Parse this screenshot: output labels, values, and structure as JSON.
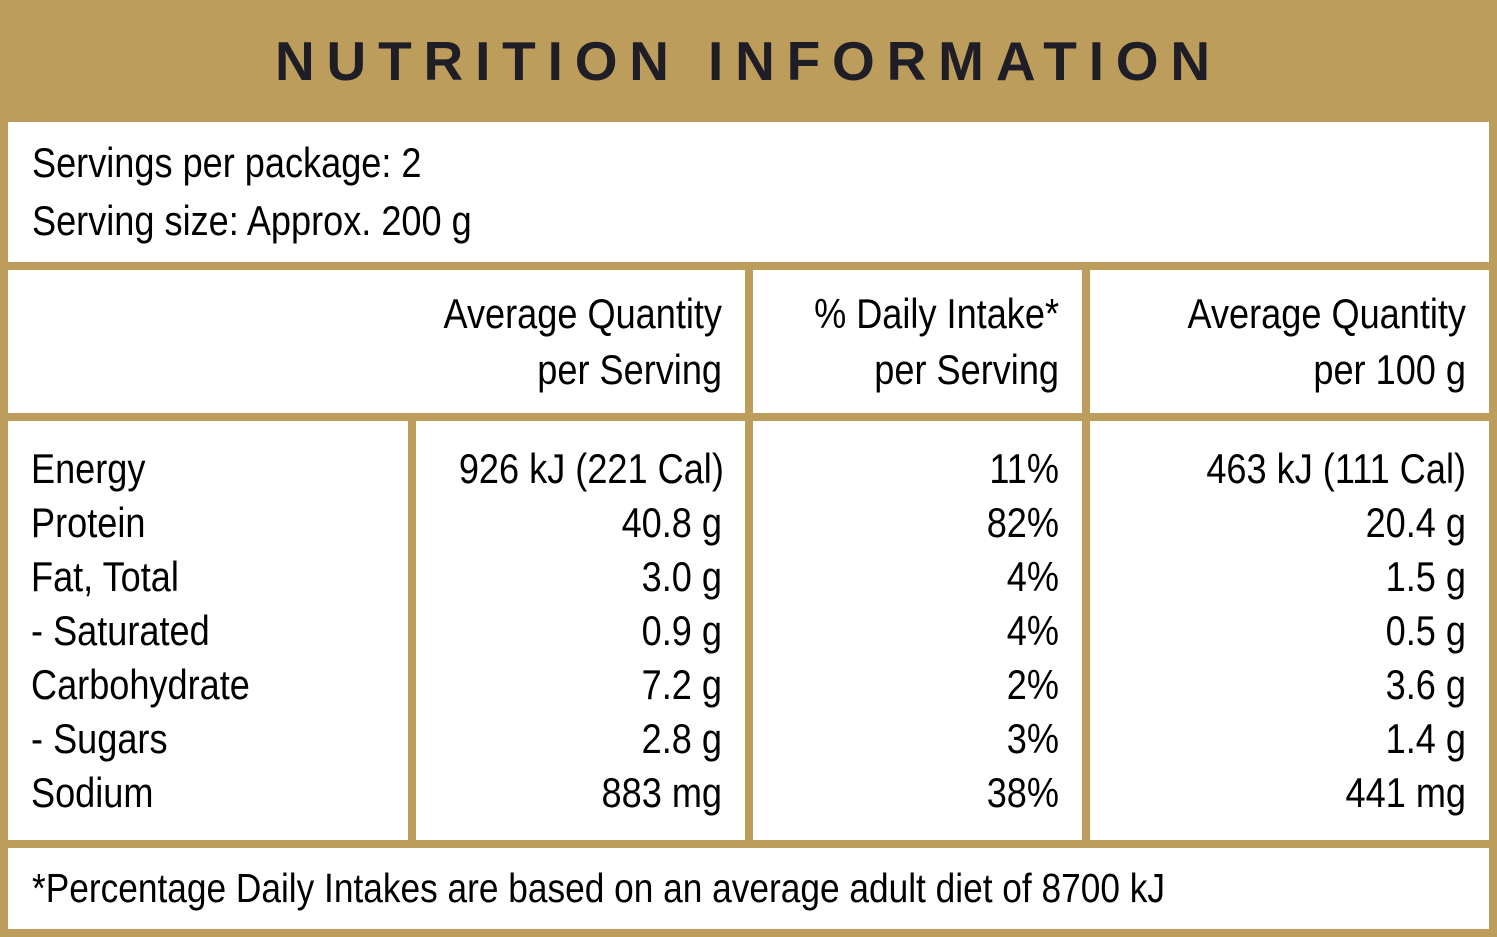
{
  "title": "NUTRITION INFORMATION",
  "colors": {
    "gold": "#BC9D5C",
    "title_text": "#1F1E26",
    "body_text": "#000000",
    "panel_background": "#FFFFFF"
  },
  "serving_info": {
    "servings_per_package": "Servings per package: 2",
    "serving_size": "Serving size: Approx. 200 g"
  },
  "table": {
    "columns": [
      {
        "line1": "Average Quantity",
        "line2": "per Serving"
      },
      {
        "line1": "% Daily Intake*",
        "line2": "per Serving"
      },
      {
        "line1": "Average Quantity",
        "line2": "per 100 g"
      }
    ],
    "rows": [
      {
        "nutrient": "Energy",
        "per_serving": "926 kJ (221 Cal)",
        "daily_intake": "11%",
        "per_100g": "463 kJ (111 Cal)"
      },
      {
        "nutrient": "Protein",
        "per_serving": "40.8 g",
        "daily_intake": "82%",
        "per_100g": "20.4 g"
      },
      {
        "nutrient": "Fat, Total",
        "per_serving": "3.0 g",
        "daily_intake": "4%",
        "per_100g": "1.5 g"
      },
      {
        "nutrient": "- Saturated",
        "per_serving": "0.9 g",
        "daily_intake": "4%",
        "per_100g": "0.5 g"
      },
      {
        "nutrient": "Carbohydrate",
        "per_serving": "7.2 g",
        "daily_intake": "2%",
        "per_100g": "3.6 g"
      },
      {
        "nutrient": "- Sugars",
        "per_serving": "2.8 g",
        "daily_intake": "3%",
        "per_100g": "1.4 g"
      },
      {
        "nutrient": "Sodium",
        "per_serving": "883 mg",
        "daily_intake": "38%",
        "per_100g": "441 mg"
      }
    ]
  },
  "footnote": "*Percentage Daily Intakes are based on an average adult diet of 8700 kJ"
}
